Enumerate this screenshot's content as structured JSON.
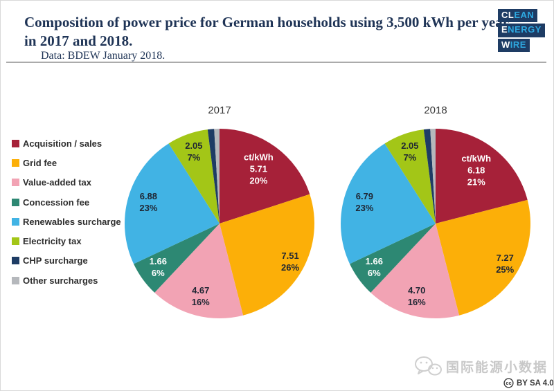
{
  "header": {
    "title": "Composition of power price for German households using 3,500 kWh per year in 2017 and 2018.",
    "subtitle": "Data: BDEW January 2018."
  },
  "logo": {
    "bg_color": "#1E3C64",
    "accent_color": "#2EA8E0",
    "rows": [
      {
        "white": "CL",
        "cyan": "EAN"
      },
      {
        "white": "E",
        "cyan": "NERGY"
      },
      {
        "white": "W",
        "cyan": "IRE"
      }
    ]
  },
  "legend": {
    "position": "left",
    "items": [
      {
        "label": "Acquisition / sales",
        "color": "#A62139"
      },
      {
        "label": "Grid fee",
        "color": "#FCAF08"
      },
      {
        "label": "Value-added tax",
        "color": "#F2A3B4"
      },
      {
        "label": "Concession fee",
        "color": "#2D8873"
      },
      {
        "label": "Renewables surcharge",
        "color": "#41B3E4"
      },
      {
        "label": "Electricity tax",
        "color": "#A3C617"
      },
      {
        "label": "CHP surcharge",
        "color": "#1E3C64"
      },
      {
        "label": "Other surcharges",
        "color": "#B5B8BC"
      }
    ]
  },
  "chart_data": {
    "type": "pie",
    "unit": "ct/kWh",
    "legend_position": "left",
    "charts": [
      {
        "title": "2017",
        "slices": [
          {
            "name": "Acquisition / sales",
            "color": "#A62139",
            "value": 5.71,
            "pct": 20,
            "label": [
              "ct/kWh",
              "5.71",
              "20%"
            ],
            "label_color": "light",
            "lr": 0.7
          },
          {
            "name": "Grid fee",
            "color": "#FCAF08",
            "value": 7.51,
            "pct": 26,
            "label": [
              "7.51",
              "26%"
            ],
            "label_color": "dark",
            "lr": 0.85
          },
          {
            "name": "Value-added tax",
            "color": "#F2A3B4",
            "value": 4.67,
            "pct": 16,
            "label": [
              "4.67",
              "16%"
            ],
            "label_color": "dark",
            "lr": 0.8
          },
          {
            "name": "Concession fee",
            "color": "#2D8873",
            "value": 1.66,
            "pct": 6,
            "label": [
              "1.66",
              "6%"
            ],
            "label_color": "light",
            "lr": 0.8
          },
          {
            "name": "Renewables surcharge",
            "color": "#41B3E4",
            "value": 6.88,
            "pct": 23,
            "label": [
              "6.88",
              "23%"
            ],
            "label_color": "dark",
            "lr": 0.78
          },
          {
            "name": "Electricity tax",
            "color": "#A3C617",
            "value": 2.05,
            "pct": 7,
            "label": [
              "2.05",
              "7%"
            ],
            "label_color": "dark",
            "lr": 0.8
          },
          {
            "name": "CHP surcharge",
            "color": "#1E3C64",
            "pct": 1.1,
            "estimated": true,
            "label": []
          },
          {
            "name": "Other surcharges",
            "color": "#B5B8BC",
            "pct": 0.9,
            "estimated": true,
            "label": []
          }
        ]
      },
      {
        "title": "2018",
        "slices": [
          {
            "name": "Acquisition / sales",
            "color": "#A62139",
            "value": 6.18,
            "pct": 21,
            "label": [
              "ct/kWh",
              "6.18",
              "21%"
            ],
            "label_color": "light",
            "lr": 0.7
          },
          {
            "name": "Grid fee",
            "color": "#FCAF08",
            "value": 7.27,
            "pct": 25,
            "label": [
              "7.27",
              "25%"
            ],
            "label_color": "dark",
            "lr": 0.85
          },
          {
            "name": "Value-added tax",
            "color": "#F2A3B4",
            "value": 4.7,
            "pct": 16,
            "label": [
              "4.70",
              "16%"
            ],
            "label_color": "dark",
            "lr": 0.8
          },
          {
            "name": "Concession fee",
            "color": "#2D8873",
            "value": 1.66,
            "pct": 6,
            "label": [
              "1.66",
              "6%"
            ],
            "label_color": "light",
            "lr": 0.8
          },
          {
            "name": "Renewables surcharge",
            "color": "#41B3E4",
            "value": 6.79,
            "pct": 23,
            "label": [
              "6.79",
              "23%"
            ],
            "label_color": "dark",
            "lr": 0.78
          },
          {
            "name": "Electricity tax",
            "color": "#A3C617",
            "value": 2.05,
            "pct": 7,
            "label": [
              "2.05",
              "7%"
            ],
            "label_color": "dark",
            "lr": 0.8
          },
          {
            "name": "CHP surcharge",
            "color": "#1E3C64",
            "pct": 1.1,
            "estimated": true,
            "label": []
          },
          {
            "name": "Other surcharges",
            "color": "#B5B8BC",
            "pct": 0.9,
            "estimated": true,
            "label": []
          }
        ]
      }
    ]
  },
  "watermark": {
    "text": "国际能源小数据"
  },
  "license": {
    "icon": "cc",
    "text": "BY SA 4.0"
  }
}
